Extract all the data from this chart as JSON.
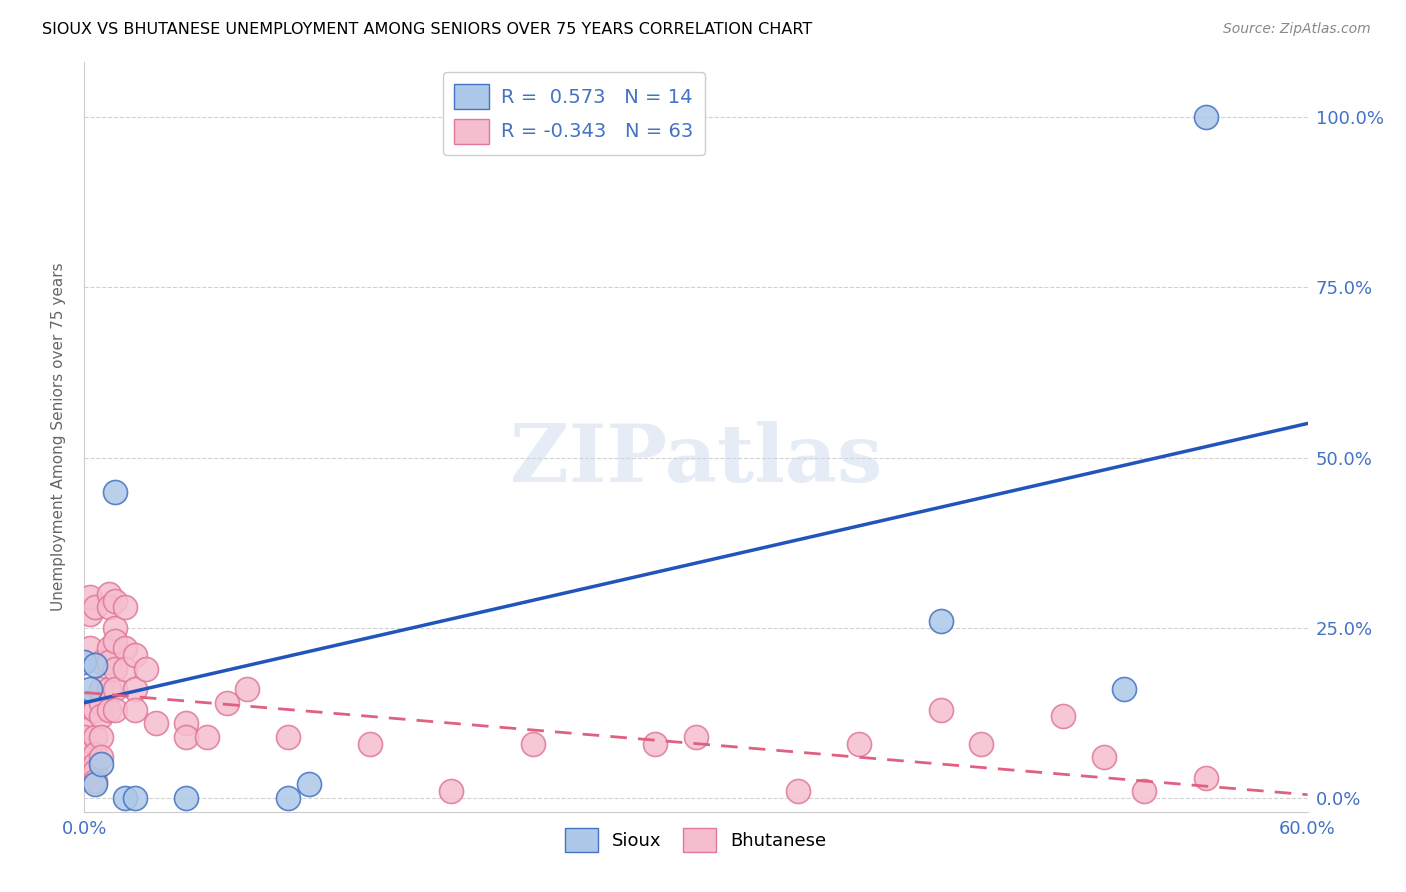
{
  "title": "SIOUX VS BHUTANESE UNEMPLOYMENT AMONG SENIORS OVER 75 YEARS CORRELATION CHART",
  "source": "Source: ZipAtlas.com",
  "ylabel": "Unemployment Among Seniors over 75 years",
  "xlim": [
    0.0,
    0.6
  ],
  "ylim": [
    -0.02,
    1.08
  ],
  "yticks": [
    0.0,
    0.25,
    0.5,
    0.75,
    1.0
  ],
  "ytick_labels": [
    "0.0%",
    "25.0%",
    "50.0%",
    "75.0%",
    "100.0%"
  ],
  "xticks": [
    0.0,
    0.1,
    0.2,
    0.3,
    0.4,
    0.5,
    0.6
  ],
  "xtick_labels": [
    "0.0%",
    "",
    "",
    "",
    "",
    "",
    "60.0%"
  ],
  "sioux_color": "#adc8e8",
  "sioux_edge_color": "#4472c4",
  "bhutanese_color": "#f5bece",
  "bhutanese_edge_color": "#e07898",
  "sioux_line_color": "#2255bb",
  "bhutanese_line_color": "#e06080",
  "legend_text_color": "#4472c4",
  "sioux_R": 0.573,
  "sioux_N": 14,
  "bhutanese_R": -0.343,
  "bhutanese_N": 63,
  "watermark": "ZIPatlas",
  "sioux_points": [
    [
      0.0,
      0.2
    ],
    [
      0.003,
      0.16
    ],
    [
      0.005,
      0.195
    ],
    [
      0.005,
      0.02
    ],
    [
      0.008,
      0.05
    ],
    [
      0.015,
      0.45
    ],
    [
      0.02,
      0.0
    ],
    [
      0.025,
      0.0
    ],
    [
      0.05,
      0.0
    ],
    [
      0.1,
      0.0
    ],
    [
      0.11,
      0.02
    ],
    [
      0.42,
      0.26
    ],
    [
      0.51,
      0.16
    ],
    [
      0.55,
      1.0
    ]
  ],
  "bhutanese_points": [
    [
      0.0,
      0.135
    ],
    [
      0.0,
      0.1
    ],
    [
      0.0,
      0.09
    ],
    [
      0.0,
      0.07
    ],
    [
      0.0,
      0.065
    ],
    [
      0.0,
      0.05
    ],
    [
      0.0,
      0.04
    ],
    [
      0.0,
      0.03
    ],
    [
      0.003,
      0.22
    ],
    [
      0.003,
      0.27
    ],
    [
      0.003,
      0.295
    ],
    [
      0.005,
      0.28
    ],
    [
      0.005,
      0.13
    ],
    [
      0.005,
      0.09
    ],
    [
      0.005,
      0.065
    ],
    [
      0.005,
      0.05
    ],
    [
      0.005,
      0.04
    ],
    [
      0.005,
      0.025
    ],
    [
      0.008,
      0.2
    ],
    [
      0.008,
      0.16
    ],
    [
      0.008,
      0.14
    ],
    [
      0.008,
      0.12
    ],
    [
      0.008,
      0.09
    ],
    [
      0.008,
      0.06
    ],
    [
      0.012,
      0.3
    ],
    [
      0.012,
      0.28
    ],
    [
      0.012,
      0.22
    ],
    [
      0.012,
      0.2
    ],
    [
      0.012,
      0.16
    ],
    [
      0.012,
      0.13
    ],
    [
      0.015,
      0.29
    ],
    [
      0.015,
      0.25
    ],
    [
      0.015,
      0.23
    ],
    [
      0.015,
      0.19
    ],
    [
      0.015,
      0.16
    ],
    [
      0.015,
      0.13
    ],
    [
      0.02,
      0.28
    ],
    [
      0.02,
      0.22
    ],
    [
      0.02,
      0.19
    ],
    [
      0.025,
      0.21
    ],
    [
      0.025,
      0.16
    ],
    [
      0.025,
      0.13
    ],
    [
      0.03,
      0.19
    ],
    [
      0.035,
      0.11
    ],
    [
      0.05,
      0.11
    ],
    [
      0.05,
      0.09
    ],
    [
      0.06,
      0.09
    ],
    [
      0.07,
      0.14
    ],
    [
      0.08,
      0.16
    ],
    [
      0.1,
      0.09
    ],
    [
      0.14,
      0.08
    ],
    [
      0.18,
      0.01
    ],
    [
      0.22,
      0.08
    ],
    [
      0.28,
      0.08
    ],
    [
      0.3,
      0.09
    ],
    [
      0.35,
      0.01
    ],
    [
      0.38,
      0.08
    ],
    [
      0.42,
      0.13
    ],
    [
      0.44,
      0.08
    ],
    [
      0.48,
      0.12
    ],
    [
      0.5,
      0.06
    ],
    [
      0.52,
      0.01
    ],
    [
      0.55,
      0.03
    ]
  ],
  "sioux_line_x": [
    0.0,
    0.6
  ],
  "sioux_line_y": [
    0.14,
    0.55
  ],
  "bhutanese_line_x": [
    0.0,
    0.6
  ],
  "bhutanese_line_y": [
    0.155,
    0.005
  ]
}
